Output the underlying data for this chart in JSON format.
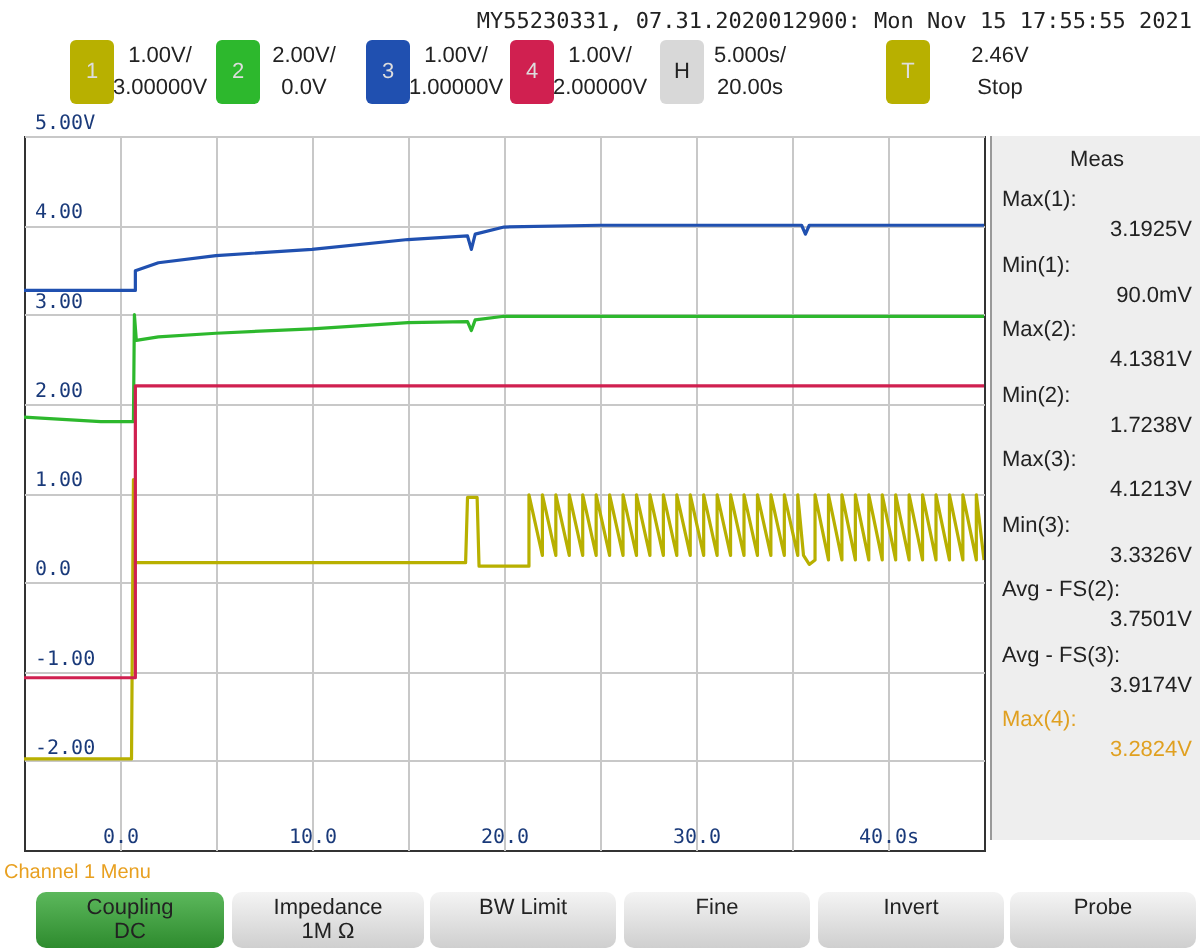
{
  "chart_data": {
    "type": "line",
    "annotations": [
      "MY55230331, 07.31.2020012900: Mon Nov 15 17:55:55 2021",
      "1",
      "1.00V/",
      "3.00000V",
      "2",
      "2.00V/",
      "0.0V",
      "3",
      "1.00V/",
      "1.00000V",
      "4",
      "1.00V/",
      "2.00000V",
      "H",
      "5.000s/",
      "20.00s",
      "T",
      "2.46V",
      "Stop",
      "Meas",
      "Max(1):",
      "3.1925V",
      "Min(1):",
      "90.0mV",
      "Max(2):",
      "4.1381V",
      "Min(2):",
      "1.7238V",
      "Max(3):",
      "4.1213V",
      "Min(3):",
      "3.3326V",
      "Avg - FS(2):",
      "3.7501V",
      "Avg - FS(3):",
      "3.9174V",
      "Max(4):",
      "3.2824V",
      "Channel 1 Menu",
      "Coupling",
      "DC",
      "Impedance",
      "1M Ω",
      "BW Limit",
      "Fine",
      "Invert",
      "Probe"
    ],
    "xlim": [
      -5,
      45
    ],
    "ylim": [
      -3,
      5
    ],
    "xticks": [
      {
        "value": 0,
        "label": "0.0"
      },
      {
        "value": 5,
        "label": null
      },
      {
        "value": 10,
        "label": "10.0"
      },
      {
        "value": 15,
        "label": null
      },
      {
        "value": 20,
        "label": "20.0"
      },
      {
        "value": 25,
        "label": null
      },
      {
        "value": 30,
        "label": "30.0"
      },
      {
        "value": 35,
        "label": null
      },
      {
        "value": 40,
        "label": "40.0s"
      }
    ],
    "yticks": [
      {
        "value": 5,
        "label": "5.00V"
      },
      {
        "value": 4,
        "label": "4.00"
      },
      {
        "value": 3,
        "label": "3.00"
      },
      {
        "value": 2,
        "label": "2.00"
      },
      {
        "value": 1,
        "label": "1.00"
      },
      {
        "value": 0,
        "label": "0.0"
      },
      {
        "value": -1,
        "label": "-1.00"
      },
      {
        "value": -2,
        "label": "-2.00"
      }
    ],
    "grid": true,
    "series": [
      {
        "color": "#b8b000",
        "x": [
          -5,
          0.6,
          0.7,
          0.8,
          0.9,
          18.0,
          18.1,
          18.6,
          18.7,
          21.3,
          21.3,
          22.0,
          22.0,
          22.7,
          22.7,
          23.4,
          23.4,
          24.1,
          24.1,
          24.8,
          24.8,
          25.5,
          25.5,
          26.2,
          26.2,
          26.9,
          26.9,
          27.6,
          27.6,
          28.3,
          28.3,
          29.0,
          29.0,
          29.7,
          29.7,
          30.4,
          30.4,
          31.1,
          31.1,
          31.8,
          31.8,
          32.5,
          32.5,
          33.2,
          33.2,
          33.9,
          33.9,
          34.6,
          34.6,
          35.3,
          35.3,
          35.6,
          35.9,
          36.2,
          36.2,
          36.9,
          36.9,
          37.6,
          37.6,
          38.3,
          38.3,
          39.0,
          39.0,
          39.7,
          39.7,
          40.4,
          40.4,
          41.1,
          41.1,
          41.8,
          41.8,
          42.5,
          42.5,
          43.2,
          43.2,
          43.9,
          43.9,
          44.6,
          44.6,
          45
        ],
        "values": [
          -1.98,
          -1.98,
          1.15,
          0.22,
          0.22,
          0.22,
          0.95,
          0.95,
          0.18,
          0.18,
          0.98,
          0.3,
          0.98,
          0.3,
          0.98,
          0.3,
          0.98,
          0.3,
          0.98,
          0.3,
          0.98,
          0.3,
          0.98,
          0.3,
          0.98,
          0.3,
          0.98,
          0.3,
          0.98,
          0.3,
          0.98,
          0.3,
          0.98,
          0.3,
          0.98,
          0.3,
          0.98,
          0.3,
          0.98,
          0.3,
          0.98,
          0.3,
          0.98,
          0.3,
          0.98,
          0.3,
          0.98,
          0.3,
          0.98,
          0.3,
          0.98,
          0.3,
          0.2,
          0.25,
          0.98,
          0.25,
          0.98,
          0.25,
          0.98,
          0.25,
          0.98,
          0.25,
          0.98,
          0.25,
          0.98,
          0.25,
          0.98,
          0.25,
          0.98,
          0.25,
          0.98,
          0.25,
          0.98,
          0.25,
          0.98,
          0.25,
          0.98,
          0.25,
          0.98,
          0.25
        ]
      },
      {
        "color": "#2db82d",
        "x": [
          -5,
          -1,
          0.7,
          0.75,
          0.85,
          2,
          5,
          10,
          15,
          18.1,
          18.3,
          18.5,
          20,
          30,
          35.7,
          45
        ],
        "values": [
          1.85,
          1.8,
          1.8,
          3.0,
          2.71,
          2.75,
          2.79,
          2.84,
          2.91,
          2.92,
          2.82,
          2.94,
          2.98,
          2.98,
          2.98,
          2.98
        ]
      },
      {
        "color": "#2050b0",
        "x": [
          -5,
          0.8,
          0.8,
          2,
          5,
          10,
          15,
          18.1,
          18.3,
          18.5,
          20,
          25,
          30,
          35.5,
          35.7,
          35.9,
          45
        ],
        "values": [
          3.27,
          3.27,
          3.49,
          3.58,
          3.66,
          3.73,
          3.84,
          3.88,
          3.73,
          3.9,
          3.98,
          4.0,
          4.0,
          4.0,
          3.9,
          4.0,
          4.0
        ]
      },
      {
        "color": "#d02050",
        "x": [
          -5,
          0.8,
          0.8,
          45
        ],
        "values": [
          -1.07,
          -1.07,
          2.2,
          2.2
        ]
      }
    ]
  }
}
